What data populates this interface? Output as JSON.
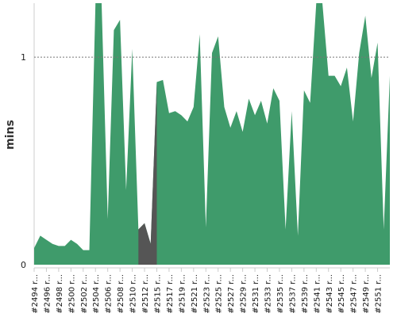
{
  "colors": {
    "area_primary": "#3f9b6b",
    "area_failed": "#555555",
    "reference_line": "#777777",
    "axis": "#cccccc"
  },
  "chart_data": {
    "type": "area",
    "ylabel": "mins",
    "xlabel": "",
    "ylim": [
      0,
      1.26
    ],
    "y_ticks": [
      {
        "value": 0,
        "label": "0"
      },
      {
        "value": 1,
        "label": "1"
      }
    ],
    "reference_lines": [
      {
        "y": 1,
        "style": "dotted"
      }
    ],
    "x_tick_labels": [
      "#2494 r...",
      "#2496 r...",
      "#2498 r...",
      "#2500 r...",
      "#2502 r...",
      "#2504 r...",
      "#2506 r...",
      "#2508 r...",
      "#2510 r...",
      "#2512 r...",
      "#2515 r...",
      "#2517 r...",
      "#2519 r...",
      "#2521 r...",
      "#2523 r...",
      "#2525 r...",
      "#2527 r...",
      "#2529 r...",
      "#2531 r...",
      "#2533 r...",
      "#2535 r...",
      "#2537 r...",
      "#2539 r...",
      "#2541 r...",
      "#2543 r...",
      "#2545 r...",
      "#2547 r...",
      "#2549 r...",
      "#2551 r..."
    ],
    "series": [
      {
        "values": [
          0.08,
          0.14,
          0.12,
          0.1,
          0.09,
          0.09,
          0.12,
          0.1,
          0.07,
          0.07,
          1.26,
          1.26,
          0.22,
          1.13,
          1.18,
          0.36,
          1.04,
          0.17,
          0.2,
          0.1,
          0.88,
          0.89,
          0.73,
          0.74,
          0.72,
          0.69,
          0.76,
          1.11,
          0.18,
          1.02,
          1.1,
          0.76,
          0.66,
          0.74,
          0.64,
          0.8,
          0.72,
          0.79,
          0.68,
          0.85,
          0.79,
          0.17,
          0.74,
          0.14,
          0.84,
          0.78,
          1.26,
          1.26,
          0.91,
          0.91,
          0.86,
          0.95,
          0.69,
          1.02,
          1.2,
          0.9,
          1.07,
          0.17,
          0.91
        ],
        "highlight_ranges": [
          {
            "from": 17,
            "to": 20,
            "status": "failed"
          }
        ]
      }
    ]
  }
}
